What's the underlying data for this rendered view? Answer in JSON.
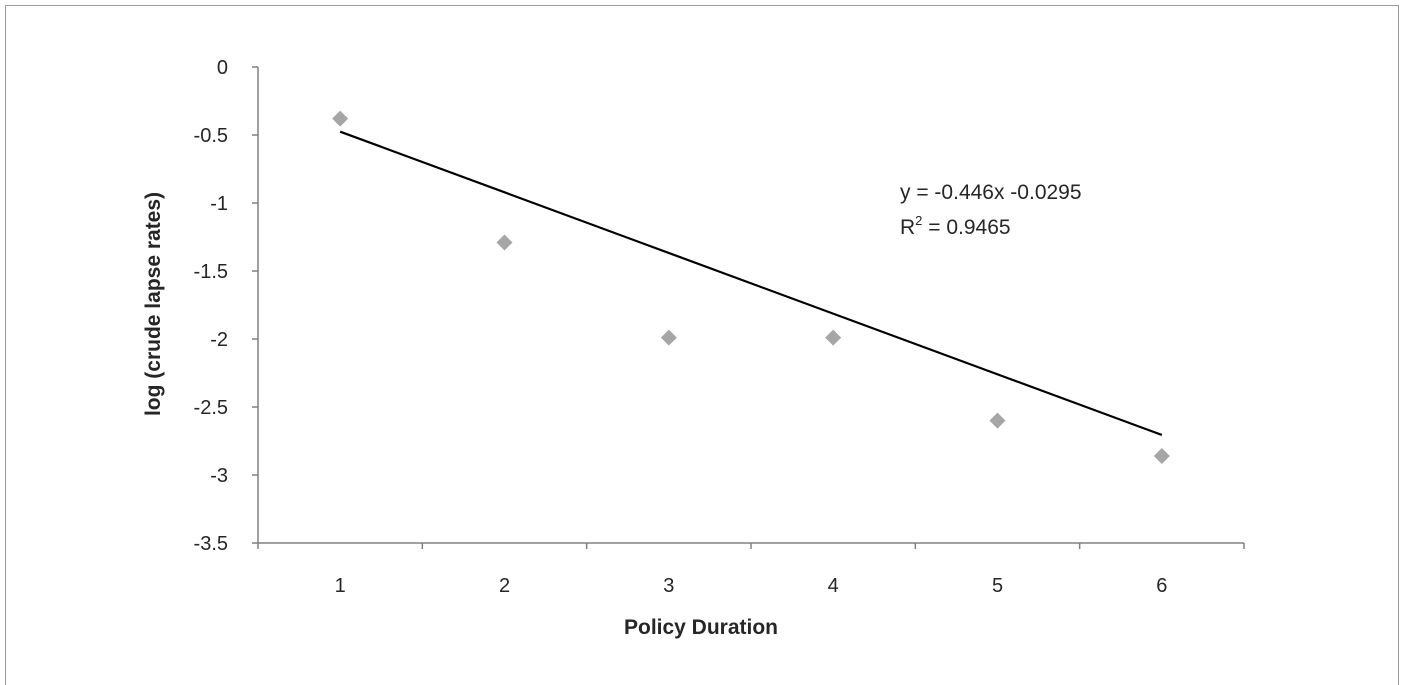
{
  "chart_data": {
    "type": "scatter",
    "xlabel": "Policy Duration",
    "ylabel": "log (crude lapse rates)",
    "x_ticks": [
      1,
      2,
      3,
      4,
      5,
      6
    ],
    "y_ticks": [
      0,
      -0.5,
      -1,
      -1.5,
      -2,
      -2.5,
      -3,
      -3.5
    ],
    "y_tick_labels": [
      "0",
      "-0.5",
      "-1",
      "-1.5",
      "-2",
      "-2.5",
      "-3",
      "-3.5"
    ],
    "ylim": [
      -3.5,
      0
    ],
    "xlim": [
      0.5,
      6.5
    ],
    "grid": false,
    "series": [
      {
        "marker": "diamond",
        "color": "#a6a6a6",
        "points": [
          {
            "x": 1,
            "y": -0.38
          },
          {
            "x": 2,
            "y": -1.29
          },
          {
            "x": 3,
            "y": -1.99
          },
          {
            "x": 4,
            "y": -1.99
          },
          {
            "x": 5,
            "y": -2.6
          },
          {
            "x": 6,
            "y": -2.86
          }
        ]
      }
    ],
    "trendline": {
      "slope": -0.446,
      "intercept": -0.0295,
      "x_range": [
        1,
        6
      ],
      "color": "#000000",
      "equation_text": "y = -0.446x -0.0295",
      "r2_prefix": "R",
      "r2_superscript": "2",
      "r2_suffix": " = 0.9465"
    }
  }
}
